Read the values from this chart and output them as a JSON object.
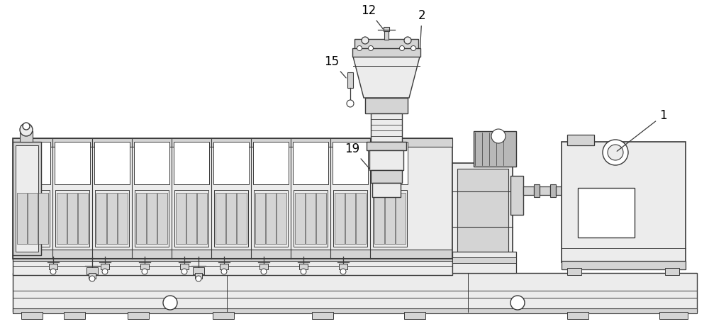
{
  "bg_color": "#ffffff",
  "lc": "#3a3a3a",
  "fl": "#ececec",
  "fm": "#d4d4d4",
  "fd": "#b8b8b8",
  "fg": "#c5d5c5",
  "lw": 0.8,
  "label_fs": 12,
  "figw": 10.0,
  "figh": 4.57
}
